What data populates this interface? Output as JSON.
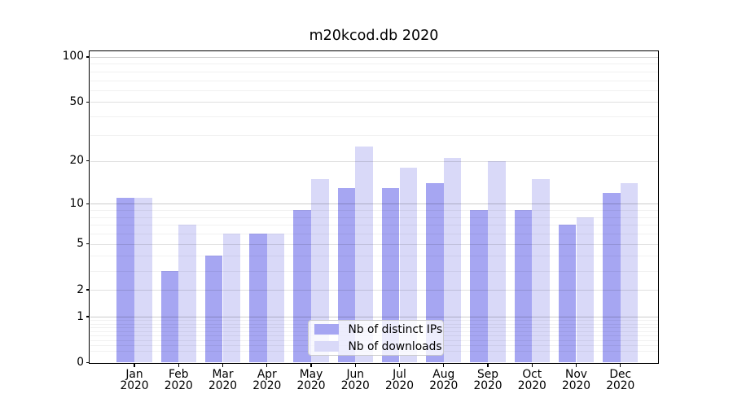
{
  "chart_data": {
    "type": "bar",
    "title": "m20kcod.db 2020",
    "categories": [
      "Jan",
      "Feb",
      "Mar",
      "Apr",
      "May",
      "Jun",
      "Jul",
      "Aug",
      "Sep",
      "Oct",
      "Nov",
      "Dec"
    ],
    "x_tick_year": "2020",
    "series": [
      {
        "name": "Nb of distinct IPs",
        "color": "#a6a6f2",
        "values": [
          11,
          3,
          4,
          6,
          9,
          13,
          13,
          14,
          9,
          9,
          7,
          12
        ]
      },
      {
        "name": "Nb of downloads",
        "color": "#d9d9f8",
        "values": [
          11,
          7,
          6,
          6,
          15,
          25,
          18,
          21,
          20,
          15,
          8,
          14
        ]
      }
    ],
    "xlabel": "",
    "ylabel": "",
    "y_axis": {
      "scale": "log1p",
      "labeled_ticks": [
        0,
        1,
        2,
        5,
        10,
        20,
        50,
        100
      ],
      "decade_ticks": [
        1,
        10,
        100
      ],
      "minor_ticks": [
        0.2,
        0.3,
        0.4,
        0.5,
        0.6,
        0.7,
        0.8,
        0.9,
        3,
        4,
        6,
        7,
        8,
        9,
        30,
        40,
        60,
        70,
        80,
        90
      ],
      "ylim": [
        0,
        107
      ]
    },
    "grid": true,
    "legend": {
      "position": "lower center",
      "entries": [
        "Nb of distinct IPs",
        "Nb of downloads"
      ]
    }
  },
  "colors": {
    "background": "#ffffff",
    "frame": "#000000",
    "tick_text": "#000000",
    "series_dark": "#a6a6f2",
    "series_light": "#d9d9f8",
    "legend_border": "#c9c9c9"
  }
}
